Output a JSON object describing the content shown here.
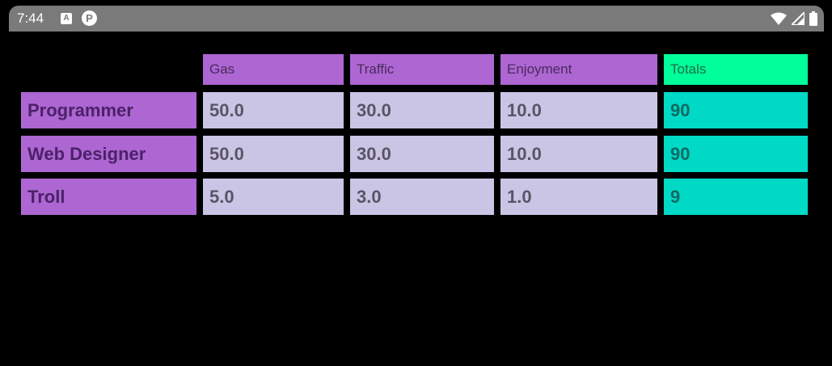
{
  "status_bar": {
    "time": "7:44",
    "notif_icons": [
      "a-icon",
      "p-icon"
    ],
    "system_icons": [
      "wifi-icon",
      "cell-signal-icon",
      "battery-icon"
    ]
  },
  "table": {
    "headers": [
      "Gas",
      "Traffic",
      "Enjoyment",
      "Totals"
    ],
    "rows": [
      {
        "label": "Programmer",
        "values": [
          "50.0",
          "30.0",
          "10.0"
        ],
        "total": "90"
      },
      {
        "label": "Web Designer",
        "values": [
          "50.0",
          "30.0",
          "10.0"
        ],
        "total": "90"
      },
      {
        "label": "Troll",
        "values": [
          "5.0",
          "3.0",
          "1.0"
        ],
        "total": "9"
      }
    ]
  },
  "colors": {
    "header_bg": "#ad66d2",
    "totals_header_bg": "#00ff99",
    "value_bg": "#cac4e5",
    "totals_bg": "#00d9c6"
  }
}
